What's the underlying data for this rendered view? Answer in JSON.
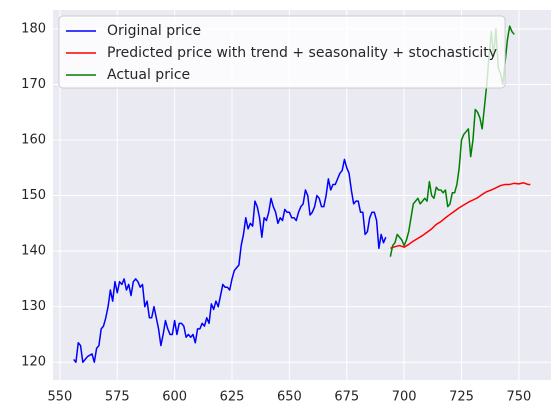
{
  "chart_data": {
    "type": "line",
    "xlim": [
      547,
      764
    ],
    "ylim": [
      116.8,
      183.4
    ],
    "xticks": [
      550,
      575,
      600,
      625,
      650,
      675,
      700,
      725,
      750
    ],
    "yticks": [
      120,
      130,
      140,
      150,
      160,
      170,
      180
    ],
    "grid": true,
    "legend": "upper left",
    "series": [
      {
        "name": "Original price",
        "color": "blue",
        "x": [
          556,
          557,
          558,
          559,
          560,
          562,
          564,
          565,
          566,
          567,
          568,
          569,
          570,
          571,
          572,
          573,
          574,
          575,
          576,
          577,
          578,
          579,
          580,
          581,
          582,
          583,
          584,
          585,
          586,
          587,
          588,
          589,
          590,
          591,
          592,
          593,
          594,
          595,
          596,
          597,
          598,
          599,
          600,
          601,
          602,
          603,
          604,
          605,
          606,
          607,
          608,
          609,
          610,
          611,
          612,
          613,
          614,
          615,
          616,
          617,
          618,
          619,
          620,
          621,
          622,
          623,
          624,
          625,
          626,
          627,
          628,
          629,
          630,
          631,
          632,
          633,
          634,
          635,
          636,
          637,
          638,
          639,
          640,
          641,
          642,
          643,
          644,
          645,
          646,
          647,
          648,
          649,
          650,
          651,
          652,
          653,
          654,
          655,
          656,
          657,
          658,
          659,
          660,
          661,
          662,
          663,
          664,
          665,
          666,
          667,
          668,
          669,
          670,
          671,
          672,
          673,
          674,
          675,
          676,
          677,
          678,
          679,
          680,
          681,
          682,
          683,
          684,
          685,
          686,
          687,
          688,
          689,
          690,
          691,
          692
        ],
        "values": [
          120.5,
          120,
          123.5,
          123,
          120,
          121,
          121.5,
          120,
          122.5,
          123,
          126,
          126.5,
          128,
          130,
          133,
          131,
          134.5,
          132.5,
          134.5,
          134,
          135,
          133,
          134,
          132,
          134.5,
          135,
          134.5,
          133.5,
          134,
          130,
          131,
          128,
          128,
          130,
          128,
          126,
          123,
          125,
          127.5,
          126,
          125,
          125,
          127.5,
          125,
          127,
          127,
          126.5,
          124.5,
          125,
          124.5,
          125,
          123.5,
          126,
          126,
          127,
          126.5,
          128,
          127,
          130.5,
          129.5,
          131,
          130,
          132,
          134,
          133.5,
          133.5,
          133,
          135,
          136.5,
          137,
          137.5,
          141,
          143,
          146,
          144,
          145,
          144.5,
          149,
          148,
          146,
          142.5,
          146,
          145.5,
          147,
          149.5,
          148,
          147,
          145,
          146,
          145.5,
          147.5,
          147,
          147,
          146,
          146,
          145.5,
          147,
          148,
          148.5,
          151,
          150,
          146.5,
          147,
          148,
          150,
          149.5,
          148,
          148,
          150,
          153,
          151,
          152,
          152,
          153,
          154,
          154.5,
          156.5,
          155,
          154,
          151,
          148.5,
          149,
          149,
          147,
          147,
          143,
          143.5,
          146,
          147,
          147,
          145.5,
          140.5,
          143,
          141.5,
          142.5
        ]
      },
      {
        "name": "Predicted price with trend + seasonality + stochasticity",
        "color": "red",
        "x": [
          694,
          696,
          698,
          700,
          702,
          704,
          706,
          708,
          710,
          712,
          714,
          716,
          718,
          720,
          722,
          724,
          726,
          728,
          730,
          732,
          734,
          736,
          738,
          740,
          742,
          744,
          746,
          748,
          750,
          752,
          754,
          755
        ],
        "values": [
          140.5,
          140.8,
          141,
          140.7,
          141.2,
          141.8,
          142.3,
          142.8,
          143.4,
          144,
          144.8,
          145.3,
          146,
          146.6,
          147.2,
          147.8,
          148.3,
          148.8,
          149.2,
          149.6,
          150.2,
          150.7,
          151,
          151.4,
          151.8,
          152,
          152,
          152.2,
          152.1,
          152.3,
          152,
          152
        ]
      },
      {
        "name": "Actual price",
        "color": "green",
        "x": [
          694,
          695,
          696,
          697,
          698,
          699,
          700,
          701,
          702,
          703,
          704,
          705,
          706,
          707,
          708,
          709,
          710,
          711,
          712,
          713,
          714,
          715,
          716,
          717,
          718,
          719,
          720,
          721,
          722,
          723,
          724,
          725,
          726,
          727,
          728,
          729,
          730,
          731,
          732,
          733,
          734,
          735,
          736,
          737,
          738,
          739,
          740,
          741,
          742,
          743,
          744,
          745,
          746,
          747,
          748
        ],
        "values": [
          139,
          141,
          141.5,
          143,
          142.5,
          142,
          141,
          142,
          143.5,
          146,
          148.5,
          149,
          149.5,
          148.5,
          149,
          149.5,
          149,
          152.5,
          150,
          149.5,
          151.5,
          151,
          151,
          150.5,
          151,
          148,
          148.5,
          150.5,
          150.5,
          152,
          155,
          160,
          161,
          161.5,
          162,
          157,
          160,
          165.5,
          165,
          164,
          162,
          166,
          170,
          175,
          179.5,
          175,
          180,
          173,
          172,
          170,
          174,
          178,
          180.5,
          179.5,
          179
        ]
      }
    ]
  }
}
